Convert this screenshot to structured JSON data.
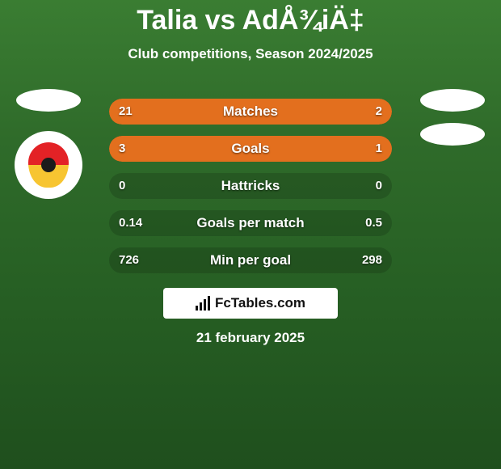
{
  "title": "Talia vs AdÅ¾iÄ‡",
  "subtitle": "Club competitions, Season 2024/2025",
  "date": "21 february 2025",
  "colors": {
    "left_fill": "#e36f1e",
    "right_fill": "#e36f1e",
    "bar_bg": "rgba(0,0,0,0.15)"
  },
  "left_player": {
    "oval_color": "#ffffff",
    "has_badge": true,
    "badge_bg": "#ffffff",
    "shield_top": "#e32226",
    "shield_bottom": "#f7c531"
  },
  "right_player": {
    "oval1_color": "#ffffff",
    "oval2_color": "#ffffff",
    "has_badge": false
  },
  "stats": [
    {
      "label": "Matches",
      "left_val": "21",
      "right_val": "2",
      "left_pct": 76,
      "right_pct": 24
    },
    {
      "label": "Goals",
      "left_val": "3",
      "right_val": "1",
      "left_pct": 96,
      "right_pct": 4
    },
    {
      "label": "Hattricks",
      "left_val": "0",
      "right_val": "0",
      "left_pct": 0,
      "right_pct": 0
    },
    {
      "label": "Goals per match",
      "left_val": "0.14",
      "right_val": "0.5",
      "left_pct": 0,
      "right_pct": 0
    },
    {
      "label": "Min per goal",
      "left_val": "726",
      "right_val": "298",
      "left_pct": 0,
      "right_pct": 0
    }
  ],
  "branding": {
    "text": "FcTables.com"
  }
}
